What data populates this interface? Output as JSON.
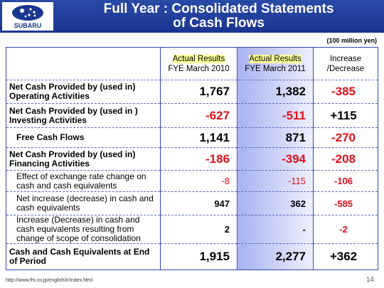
{
  "header": {
    "logo_text": "SUBARU",
    "title_line1": "Full Year : Consolidated Statements",
    "title_line2": "of Cash Flows"
  },
  "unit": "(100 million yen)",
  "table": {
    "columns": [
      [
        "Actual Results",
        "FYE March 2010"
      ],
      [
        "Actual Results",
        "FYE March 2011"
      ],
      [
        "Increase",
        "/Decrease"
      ]
    ],
    "rows": [
      [
        "Net Cash Provided by (used in) Operating Activities",
        "1,767",
        "1,382",
        "-385"
      ],
      [
        "Net Cash Provided by (used in ) Investing Activities",
        "-627",
        "-511",
        "+115"
      ],
      [
        "Free Cash Flows",
        "1,141",
        "871",
        "-270"
      ],
      [
        "Net Cash Provided by (used in) Financing Activities",
        "-186",
        "-394",
        "-208"
      ],
      [
        "Effect of exchange rate change on cash and cash equivalents",
        "-8",
        "-115",
        "-106"
      ],
      [
        "Net increase (decrease) in cash and cash equivalents",
        "947",
        "362",
        "-585"
      ],
      [
        "Increase (Decrease) in cash and cash equivalents resulting from change of scope of consolidation",
        "2",
        "-",
        "-2"
      ],
      [
        "Cash and Cash Equivalents at End of Period",
        "1,915",
        "2,277",
        "+362"
      ]
    ]
  },
  "footer": {
    "url": "http://www.fhi.co.jp/english/ir/index.html",
    "page": "14"
  }
}
